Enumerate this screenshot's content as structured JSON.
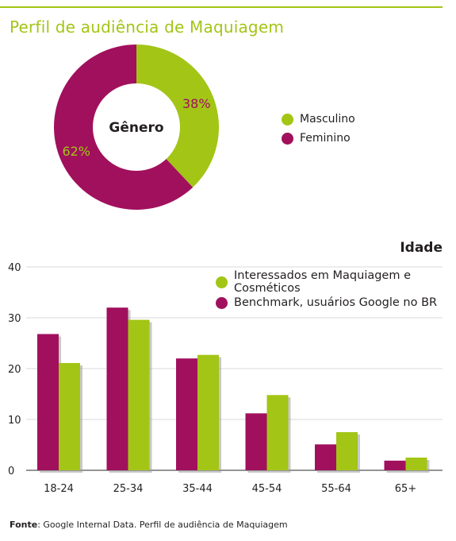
{
  "header": {
    "title": "Perfil de audiência de Maquiagem"
  },
  "colors": {
    "green": "#a3c516",
    "magenta": "#a1105d",
    "grid": "#d9d9d9"
  },
  "gender_chart": {
    "center_label": "Gênero",
    "legend": [
      "Masculino",
      "Feminino"
    ]
  },
  "age_chart": {
    "title": "Idade",
    "legend": [
      "Interessados em Maquiagem e Cosméticos",
      "Benchmark, usuários Google no BR"
    ]
  },
  "footer": {
    "source_label": "Fonte",
    "source_text": ": Google Internal Data. Perfil de audiência de Maquiagem"
  },
  "chart_data": [
    {
      "type": "pie",
      "title": "Gênero",
      "labels": [
        "Masculino",
        "Feminino"
      ],
      "values": [
        38,
        62
      ],
      "value_labels": [
        "38%",
        "62%"
      ],
      "colors": [
        "#a3c516",
        "#a1105d"
      ],
      "donut": true,
      "legend": "right"
    },
    {
      "type": "bar",
      "title": "Idade",
      "categories": [
        "18-24",
        "25-34",
        "35-44",
        "45-54",
        "55-64",
        "65+"
      ],
      "series": [
        {
          "name": "Benchmark, usuários Google no BR",
          "values": [
            26.8,
            32,
            22,
            11.2,
            5.1,
            1.9
          ],
          "color": "#a1105d"
        },
        {
          "name": "Interessados em Maquiagem e Cosméticos",
          "values": [
            21.1,
            29.6,
            22.7,
            14.8,
            7.5,
            2.5
          ],
          "color": "#a3c516"
        }
      ],
      "ylim": [
        0,
        40
      ],
      "yticks": [
        0,
        10,
        20,
        30,
        40
      ],
      "grid": true,
      "legend": "top-right"
    }
  ]
}
